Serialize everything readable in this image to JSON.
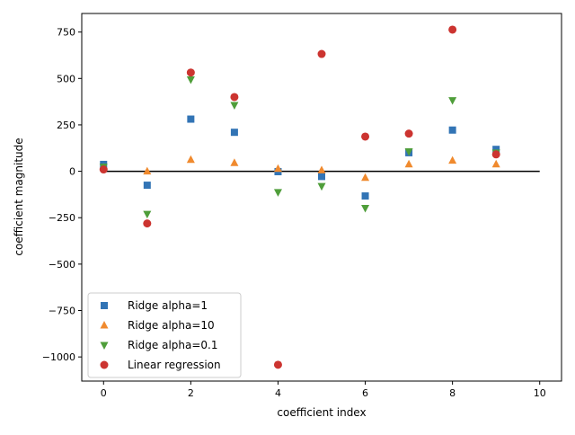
{
  "chart_data": {
    "type": "scatter",
    "title": "",
    "xlabel": "coefficient index",
    "ylabel": "coefficient magnitude",
    "xlim": [
      -0.5,
      10.5
    ],
    "ylim": [
      -1130,
      850
    ],
    "xticks": [
      0,
      2,
      4,
      6,
      8,
      10
    ],
    "yticks": [
      -1000,
      -750,
      -500,
      -250,
      0,
      250,
      500,
      750
    ],
    "grid": false,
    "legend_position": "lower-left",
    "reference_line": {
      "y": 0,
      "x_from": 0,
      "x_to": 10,
      "color": "#000000"
    },
    "series": [
      {
        "name": "Ridge alpha=1",
        "marker": "square",
        "color": "#3274b5",
        "x": [
          0,
          1,
          2,
          3,
          4,
          5,
          6,
          7,
          8,
          9
        ],
        "y": [
          37,
          -75,
          281,
          210,
          -2,
          -28,
          -133,
          100,
          222,
          118
        ]
      },
      {
        "name": "Ridge alpha=10",
        "marker": "triangle-up",
        "color": "#f08a2e",
        "x": [
          0,
          1,
          2,
          3,
          4,
          5,
          6,
          7,
          8,
          9
        ],
        "y": [
          20,
          0,
          62,
          45,
          14,
          6,
          -35,
          38,
          58,
          38
        ]
      },
      {
        "name": "Ridge alpha=0.1",
        "marker": "triangle-down",
        "color": "#4f9e3a",
        "x": [
          0,
          1,
          2,
          3,
          4,
          5,
          6,
          7,
          8,
          9
        ],
        "y": [
          24,
          -230,
          494,
          356,
          -113,
          -80,
          -198,
          107,
          382,
          100
        ]
      },
      {
        "name": "Linear regression",
        "marker": "circle",
        "color": "#cc3430",
        "x": [
          0,
          1,
          2,
          3,
          4,
          5,
          6,
          7,
          8,
          9
        ],
        "y": [
          10,
          -281,
          532,
          400,
          -1042,
          632,
          187,
          203,
          763,
          91
        ]
      }
    ]
  }
}
